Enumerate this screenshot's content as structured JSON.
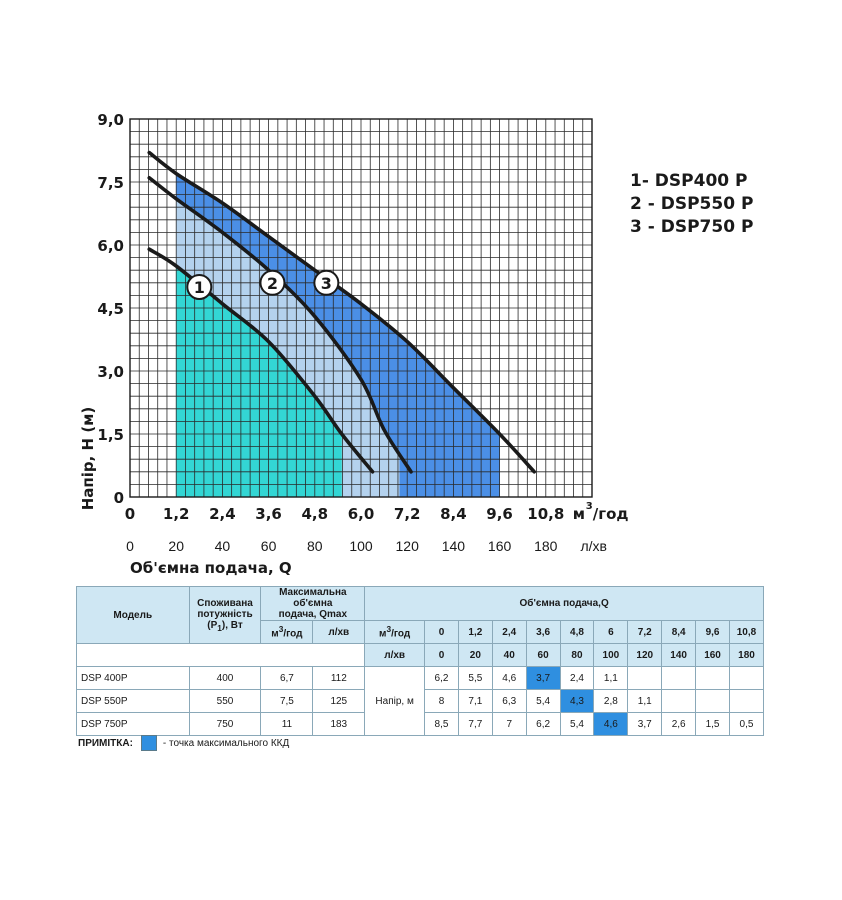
{
  "chart_data": {
    "type": "line",
    "xlabel": "Об'ємна подача, Q",
    "ylabel": "Напір, H (м)",
    "x_unit_main": "м",
    "x_unit_main_sup": "3",
    "x_unit_main_suffix": "/год",
    "x_unit_secondary": "л/хв",
    "xlim": [
      0,
      12
    ],
    "ylim": [
      0,
      9
    ],
    "x_ticks": [
      "0",
      "1,2",
      "2,4",
      "3,6",
      "4,8",
      "6,0",
      "7,2",
      "8,4",
      "9,6",
      "10,8"
    ],
    "x_ticks_lpm": [
      "0",
      "20",
      "40",
      "60",
      "80",
      "100",
      "120",
      "140",
      "160",
      "180"
    ],
    "y_ticks": [
      "0",
      "1,5",
      "3,0",
      "4,5",
      "6,0",
      "7,5",
      "9,0"
    ],
    "grid": true,
    "series": [
      {
        "name": "1- DSP400 P",
        "label": "1",
        "x": [
          0.5,
          1.2,
          2.4,
          3.6,
          4.8,
          5.5,
          6.3
        ],
        "y": [
          5.9,
          5.5,
          4.6,
          3.7,
          2.4,
          1.5,
          0.6
        ],
        "fill_xmax": 5.5,
        "color": "#1a1a1a"
      },
      {
        "name": "2 - DSP550 P",
        "label": "2",
        "x": [
          0.5,
          1.2,
          2.4,
          3.6,
          4.8,
          6.0,
          6.6,
          7.3
        ],
        "y": [
          7.6,
          7.1,
          6.3,
          5.4,
          4.3,
          2.8,
          1.6,
          0.6
        ],
        "fill_xmax": 7.0,
        "color": "#1a1a1a"
      },
      {
        "name": "3 - DSP750 P",
        "label": "3",
        "x": [
          0.5,
          1.2,
          2.4,
          3.6,
          4.8,
          6.0,
          7.2,
          8.4,
          9.6,
          10.5
        ],
        "y": [
          8.2,
          7.7,
          7.0,
          6.2,
          5.4,
          4.6,
          3.7,
          2.6,
          1.5,
          0.6
        ],
        "fill_xmax": 9.6,
        "color": "#1a1a1a"
      }
    ],
    "fill_colors": [
      "#33d6d4",
      "#b4d2ee",
      "#4b8fe6"
    ]
  },
  "legend": [
    "1- DSP400 P",
    "2 - DSP550 P",
    "3 - DSP750 P"
  ],
  "table": {
    "headers": {
      "model": "Модель",
      "power_l1": "Споживана",
      "power_l2": "потужність",
      "power_l3": "(P",
      "power_sub": "1",
      "power_l3b": "), Вт",
      "qmax_l1": "Максимальна об'ємна",
      "qmax_l2": "подача, Qmax",
      "flow": "Об'ємна подача,Q",
      "m3_unit": "м",
      "m3_sup": "3",
      "m3_suffix": "/год",
      "lpm_unit": "л/хв",
      "head": "Напір, м"
    },
    "flow_m3": [
      "0",
      "1,2",
      "2,4",
      "3,6",
      "4,8",
      "6",
      "7,2",
      "8,4",
      "9,6",
      "10,8"
    ],
    "flow_lpm": [
      "0",
      "20",
      "40",
      "60",
      "80",
      "100",
      "120",
      "140",
      "160",
      "180"
    ],
    "rows": [
      {
        "model": "DSP 400P",
        "power": "400",
        "qmax_m3": "6,7",
        "qmax_lpm": "112",
        "heads": [
          "6,2",
          "5,5",
          "4,6",
          "3,7",
          "2,4",
          "1,1",
          "",
          "",
          "",
          ""
        ],
        "highlight": 3
      },
      {
        "model": "DSP 550P",
        "power": "550",
        "qmax_m3": "7,5",
        "qmax_lpm": "125",
        "heads": [
          "8",
          "7,1",
          "6,3",
          "5,4",
          "4,3",
          "2,8",
          "1,1",
          "",
          "",
          ""
        ],
        "highlight": 4
      },
      {
        "model": "DSP 750P",
        "power": "750",
        "qmax_m3": "11",
        "qmax_lpm": "183",
        "heads": [
          "8,5",
          "7,7",
          "7",
          "6,2",
          "5,4",
          "4,6",
          "3,7",
          "2,6",
          "1,5",
          "0,5"
        ],
        "highlight": 5
      }
    ]
  },
  "note": {
    "label": "ПРИМІТКА:",
    "text": "- точка максимального ККД",
    "color": "#2f8fe0"
  }
}
